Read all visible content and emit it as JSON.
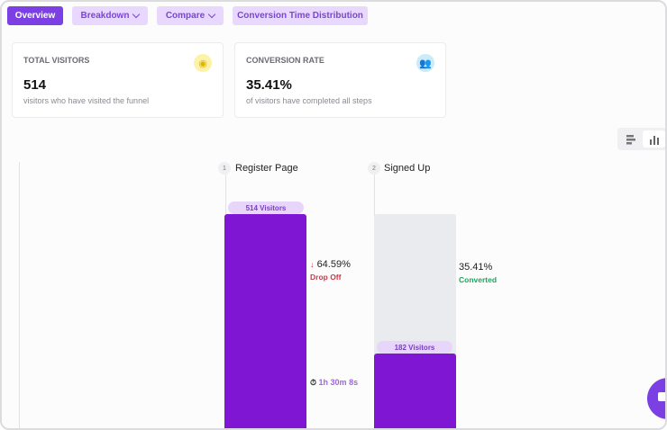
{
  "tabs": [
    {
      "label": "Overview",
      "active": true
    },
    {
      "label": "Breakdown",
      "dropdown": true
    },
    {
      "label": "Compare",
      "dropdown": true
    },
    {
      "label": "Conversion Time Distribution"
    }
  ],
  "cards": [
    {
      "title": "TOTAL VISITORS",
      "value": "514",
      "subtitle": "visitors who have visited the funnel",
      "icon": "eye-icon",
      "icon_color": "#e0b400",
      "icon_bg": "#fdf3a8"
    },
    {
      "title": "CONVERSION RATE",
      "value": "35.41%",
      "subtitle": "of visitors have completed all steps",
      "icon": "users-icon",
      "icon_color": "#22a6d6",
      "icon_bg": "#c9ecf8"
    }
  ],
  "view_toggle": {
    "options": [
      "horizontal-bars-icon",
      "vertical-bars-icon"
    ],
    "selected": "vertical-bars-icon"
  },
  "steps": [
    {
      "number": "1",
      "label": "Register Page",
      "visitors_label": "514 Visitors",
      "visitors": 514,
      "drop_pct": "64.59%",
      "drop_label": "Drop Off",
      "time": "1h 30m 8s"
    },
    {
      "number": "2",
      "label": "Signed Up",
      "visitors_label": "182 Visitors",
      "visitors": 182,
      "conv_pct": "35.41%",
      "conv_label": "Converted"
    }
  ],
  "colors": {
    "accent": "#7b3fe4",
    "bar": "#7e16d3",
    "drop": "#d1364a",
    "converted": "#1fa45a",
    "time": "#9a6ad8"
  }
}
